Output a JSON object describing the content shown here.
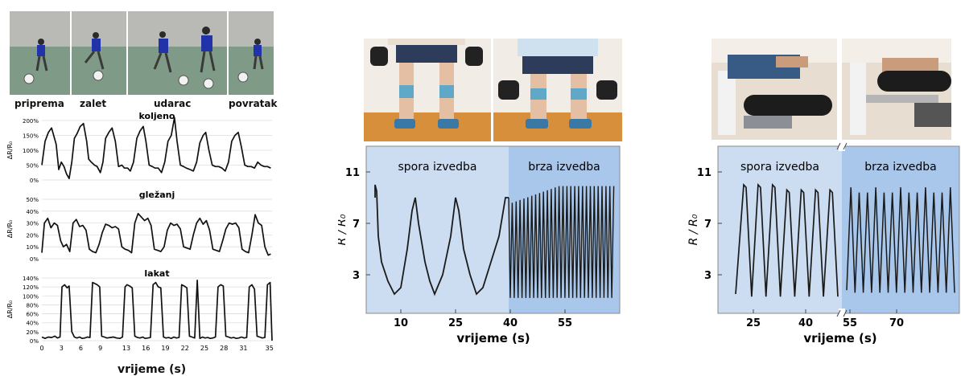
{
  "left": {
    "phases": [
      "priprema",
      "zalet",
      "udarac",
      "povratak"
    ],
    "xlabel": "vrijeme (s)",
    "xticks": [
      "0",
      "3",
      "6",
      "9",
      "13",
      "16",
      "19",
      "22",
      "25",
      "28",
      "31",
      "35"
    ],
    "charts": [
      {
        "title": "koljeno",
        "ylabel": "ΔR/R₀",
        "yticks": [
          "0%",
          "50%",
          "100%",
          "150%",
          "200%"
        ],
        "ymax": 200,
        "x": [
          0,
          0.5,
          1.0,
          1.5,
          2.2,
          2.6,
          3.0,
          3.4,
          3.8,
          4.2,
          4.6,
          5.0,
          5.4,
          5.9,
          6.4,
          6.9,
          7.2,
          7.6,
          8.1,
          8.5,
          9.0,
          9.4,
          9.8,
          10.3,
          10.8,
          11.3,
          11.8,
          12.3,
          12.7,
          13.2,
          13.6,
          14.1,
          14.6,
          15.1,
          15.6,
          16.0,
          16.5,
          17.0,
          17.4,
          17.9,
          18.4,
          18.9,
          19.4,
          19.9,
          20.4,
          20.8,
          21.3,
          21.8,
          22.2,
          22.8,
          23.3,
          23.8,
          24.3,
          24.8,
          25.2,
          25.7,
          26.2,
          26.7,
          27.2,
          27.7,
          28.2,
          28.7,
          29.2,
          29.7,
          30.2,
          30.7,
          31.2,
          31.7,
          32.2,
          32.7,
          33.2,
          33.7,
          34.2,
          34.7,
          35.2
        ],
        "y": [
          50,
          130,
          160,
          175,
          120,
          35,
          60,
          45,
          20,
          5,
          60,
          140,
          155,
          180,
          190,
          130,
          70,
          60,
          50,
          45,
          25,
          60,
          140,
          160,
          175,
          130,
          45,
          50,
          40,
          40,
          30,
          60,
          140,
          165,
          180,
          130,
          50,
          45,
          40,
          40,
          25,
          60,
          130,
          150,
          210,
          130,
          50,
          45,
          40,
          35,
          30,
          60,
          125,
          150,
          160,
          100,
          50,
          45,
          45,
          40,
          30,
          60,
          130,
          150,
          160,
          110,
          50,
          45,
          45,
          40,
          60,
          50,
          45,
          45,
          40
        ]
      },
      {
        "title": "gležanj",
        "ylabel": "ΔR/R₀",
        "yticks": [
          "0%",
          "10%",
          "20%",
          "30%",
          "40%",
          "50%"
        ],
        "ymax": 50,
        "x": [
          0,
          0.4,
          0.9,
          1.4,
          1.9,
          2.4,
          2.9,
          3.3,
          3.8,
          4.3,
          4.8,
          5.3,
          5.8,
          6.3,
          6.8,
          7.3,
          7.8,
          8.3,
          8.8,
          9.3,
          9.8,
          10.3,
          10.8,
          11.3,
          11.8,
          12.3,
          12.8,
          13.3,
          13.8,
          14.3,
          14.8,
          15.3,
          15.8,
          16.3,
          16.8,
          17.3,
          17.8,
          18.3,
          18.8,
          19.3,
          19.8,
          20.3,
          20.8,
          21.3,
          21.8,
          22.3,
          22.8,
          23.3,
          23.8,
          24.3,
          24.8,
          25.3,
          25.8,
          26.3,
          26.8,
          27.3,
          27.8,
          28.3,
          28.8,
          29.3,
          29.8,
          30.3,
          30.8,
          31.3,
          31.8,
          32.3,
          32.8,
          33.3,
          33.8,
          34.3,
          34.8,
          35.2
        ],
        "y": [
          5,
          30,
          34,
          26,
          30,
          28,
          15,
          10,
          12,
          6,
          30,
          33,
          27,
          28,
          24,
          8,
          6,
          5,
          12,
          22,
          29,
          28,
          26,
          27,
          25,
          10,
          8,
          7,
          5,
          30,
          38,
          35,
          32,
          34,
          28,
          8,
          7,
          6,
          10,
          24,
          30,
          28,
          29,
          25,
          10,
          9,
          8,
          20,
          30,
          34,
          29,
          32,
          24,
          8,
          7,
          6,
          15,
          25,
          30,
          29,
          30,
          26,
          8,
          6,
          5,
          20,
          37,
          30,
          28,
          10,
          3,
          4
        ]
      },
      {
        "title": "lakat",
        "ylabel": "ΔR/R₀",
        "yticks": [
          "0%",
          "20%",
          "40%",
          "60%",
          "80%",
          "100%",
          "120%",
          "140%"
        ],
        "ymax": 140,
        "x": [
          0,
          0.5,
          1.0,
          1.5,
          2.0,
          2.4,
          2.8,
          3.1,
          3.5,
          3.9,
          4.2,
          4.6,
          5.0,
          5.4,
          5.8,
          6.2,
          6.6,
          7.0,
          7.4,
          7.8,
          8.1,
          8.5,
          8.9,
          9.2,
          9.6,
          10.0,
          10.5,
          11.0,
          11.5,
          12.0,
          12.4,
          12.8,
          13.1,
          13.5,
          13.9,
          14.3,
          14.7,
          15.1,
          15.5,
          15.9,
          16.3,
          16.7,
          17.1,
          17.5,
          17.9,
          18.3,
          18.7,
          19.1,
          19.5,
          19.9,
          20.3,
          20.7,
          21.1,
          21.5,
          21.9,
          22.3,
          22.7,
          23.1,
          23.5,
          23.9,
          24.3,
          24.7,
          25.1,
          25.5,
          25.9,
          26.3,
          26.7,
          27.1,
          27.5,
          27.9,
          28.3,
          28.7,
          29.1,
          29.5,
          29.9,
          30.3,
          30.7,
          31.1,
          31.5,
          31.9,
          32.3,
          32.7,
          33.1,
          33.5,
          33.9,
          34.3,
          34.7,
          35.1,
          35.4
        ],
        "y": [
          8,
          5,
          8,
          7,
          10,
          6,
          8,
          120,
          125,
          118,
          122,
          20,
          8,
          6,
          8,
          5,
          6,
          8,
          7,
          130,
          128,
          125,
          120,
          10,
          8,
          6,
          7,
          8,
          6,
          5,
          8,
          120,
          125,
          122,
          118,
          10,
          7,
          6,
          8,
          5,
          6,
          7,
          125,
          130,
          120,
          118,
          8,
          6,
          7,
          5,
          8,
          6,
          7,
          125,
          122,
          118,
          10,
          8,
          6,
          135,
          5,
          8,
          6,
          7,
          5,
          6,
          8,
          120,
          125,
          122,
          10,
          8,
          6,
          7,
          5,
          6,
          8,
          6,
          7,
          120,
          125,
          115,
          10,
          8,
          6,
          7,
          125,
          130,
          0
        ]
      }
    ]
  },
  "middle": {
    "ylabel": "R / R₀",
    "yticks": [
      "3",
      "7",
      "11"
    ],
    "xticks": [
      "10",
      "25",
      "40",
      "55"
    ],
    "xlabel": "vrijeme (s)",
    "slow_label": "spora izvedba",
    "fast_label": "brza izvedba",
    "slow_bg": "#ccdcf1",
    "fast_bg": "#a9c7ea"
  },
  "right": {
    "ylabel": "R / R₀",
    "yticks": [
      "3",
      "7",
      "11"
    ],
    "xticks": [
      "25",
      "40",
      "55",
      "70"
    ],
    "xlabel": "vrijeme (s)",
    "slow_label": "spora izvedba",
    "fast_label": "brza izvedba",
    "slow_bg": "#ccdcf1",
    "fast_bg": "#a9c7ea"
  },
  "chart_data": [
    {
      "type": "line",
      "title": "koljeno",
      "ylabel": "ΔR/R₀",
      "ylim": [
        0,
        200
      ],
      "xlim": [
        0,
        35
      ],
      "note_series": "see left.charts[0]"
    },
    {
      "type": "line",
      "title": "gležanj",
      "ylabel": "ΔR/R₀",
      "ylim": [
        0,
        50
      ],
      "xlim": [
        0,
        35
      ]
    },
    {
      "type": "line",
      "title": "lakat",
      "ylabel": "ΔR/R₀",
      "ylim": [
        0,
        140
      ],
      "xlim": [
        0,
        35
      ]
    },
    {
      "type": "line",
      "ylabel": "R / R₀",
      "xlabel": "vrijeme (s)",
      "ylim": [
        0,
        13
      ],
      "regions": [
        "spora izvedba",
        "brza izvedba"
      ],
      "slow": {
        "peaks_x": [
          7,
          12,
          24,
          36
        ],
        "peak_y": 9,
        "trough_y": 1
      },
      "fast": {
        "x_range": [
          39,
          68
        ],
        "cycles": 27,
        "max_y": 10,
        "min_y": 1
      }
    },
    {
      "type": "line",
      "ylabel": "R / R₀",
      "xlabel": "vrijeme (s)",
      "ylim": [
        0,
        13
      ],
      "regions": [
        "spora izvedba",
        "brza izvedba"
      ],
      "slow": {
        "cycles": 7,
        "max_y": 10,
        "min_y": 1
      },
      "fast": {
        "cycles": 13,
        "max_y": 10,
        "min_y": 1.5
      }
    }
  ]
}
